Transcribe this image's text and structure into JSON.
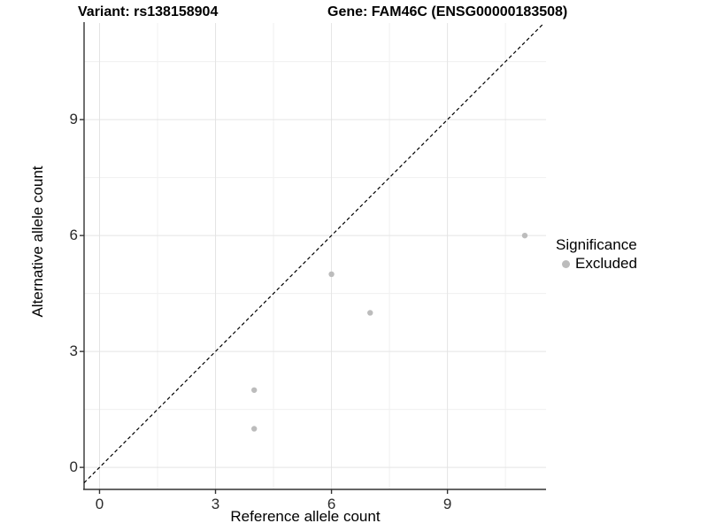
{
  "chart_data": {
    "type": "scatter",
    "title_left": "Variant: rs138158904",
    "title_right": "Gene: FAM46C (ENSG00000183508)",
    "xlabel": "Reference allele count",
    "ylabel": "Alternative allele count",
    "xlim": [
      -0.4,
      11.55
    ],
    "ylim": [
      -0.57,
      11.5
    ],
    "xticks": [
      0,
      3,
      6,
      9
    ],
    "yticks": [
      0,
      3,
      6,
      9
    ],
    "minor_xticks": [
      1.5,
      4.5,
      7.5,
      10.5
    ],
    "minor_yticks": [
      1.5,
      4.5,
      7.5,
      10.5
    ],
    "grid": "on",
    "identity_line": {
      "style": "dashed",
      "slope": 1,
      "intercept": 0,
      "color": "#000000"
    },
    "series": [
      {
        "name": "Excluded",
        "color": "#bcbcbc",
        "points": [
          [
            4,
            1
          ],
          [
            4,
            2
          ],
          [
            6,
            5
          ],
          [
            7,
            4
          ],
          [
            11,
            6
          ]
        ]
      }
    ],
    "legend": {
      "position": "right",
      "title": "Significance",
      "items": [
        {
          "label": "Excluded",
          "color": "#bcbcbc",
          "marker": "circle"
        }
      ]
    },
    "colors": {
      "grid_major": "#e4e4e4",
      "grid_minor": "#f0f0f0",
      "axis_line": "#333333",
      "tick_text": "#2b2b2b"
    }
  }
}
